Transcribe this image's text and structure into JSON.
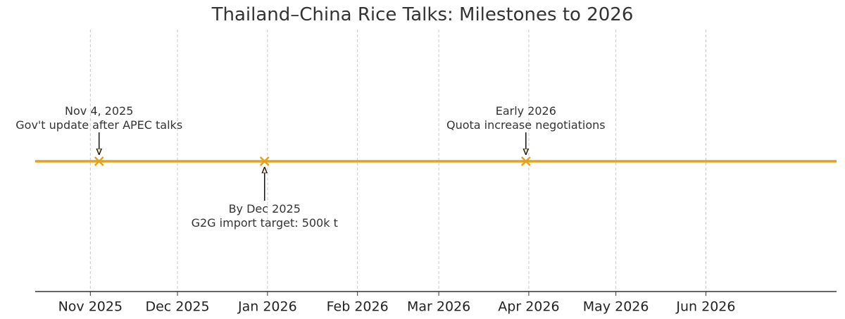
{
  "chart_data": {
    "type": "timeline",
    "title": "Thailand–China Rice Talks: Milestones to 2026",
    "xlabel": "",
    "ylabel": "",
    "x_range": [
      "2025-10-13",
      "2026-07-16"
    ],
    "grid": "vertical dashed at month ticks",
    "x_ticks": [
      {
        "date": "2025-11-01",
        "label": "Nov 2025"
      },
      {
        "date": "2025-12-01",
        "label": "Dec 2025"
      },
      {
        "date": "2026-01-01",
        "label": "Jan 2026"
      },
      {
        "date": "2026-02-01",
        "label": "Feb 2026"
      },
      {
        "date": "2026-03-01",
        "label": "Mar 2026"
      },
      {
        "date": "2026-04-01",
        "label": "Apr 2026"
      },
      {
        "date": "2026-05-01",
        "label": "May 2026"
      },
      {
        "date": "2026-06-01",
        "label": "Jun 2026"
      }
    ],
    "events": [
      {
        "date": "2025-11-04",
        "label": "Nov 4, 2025",
        "description": "Gov't update after APEC talks",
        "side": "above"
      },
      {
        "date": "2025-12-31",
        "label": "By Dec 2025",
        "description": "G2G import target: 500k t",
        "side": "below"
      },
      {
        "date": "2026-03-31",
        "label": "Early 2026",
        "description": "Quota increase negotiations",
        "side": "above"
      }
    ],
    "colors": {
      "timeline": "#e5a11b",
      "marker": "#e5a11b",
      "grid": "#c8c8c8",
      "axis": "#333333",
      "arrow": "#111111"
    }
  }
}
